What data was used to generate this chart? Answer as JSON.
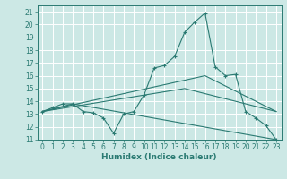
{
  "xlabel": "Humidex (Indice chaleur)",
  "xlim": [
    -0.5,
    23.5
  ],
  "ylim": [
    11,
    21.5
  ],
  "yticks": [
    11,
    12,
    13,
    14,
    15,
    16,
    17,
    18,
    19,
    20,
    21
  ],
  "xticks": [
    0,
    1,
    2,
    3,
    4,
    5,
    6,
    7,
    8,
    9,
    10,
    11,
    12,
    13,
    14,
    15,
    16,
    17,
    18,
    19,
    20,
    21,
    22,
    23
  ],
  "bg_color": "#cce8e5",
  "line_color": "#2a7a72",
  "grid_color": "#ffffff",
  "main_line": {
    "x": [
      0,
      1,
      2,
      3,
      4,
      5,
      6,
      7,
      8,
      9,
      10,
      11,
      12,
      13,
      14,
      15,
      16,
      17,
      18,
      19,
      20,
      21,
      22,
      23
    ],
    "y": [
      13.2,
      13.5,
      13.8,
      13.8,
      13.2,
      13.1,
      12.7,
      11.5,
      13.0,
      13.2,
      14.5,
      16.6,
      16.8,
      17.5,
      19.4,
      20.2,
      20.9,
      16.7,
      16.0,
      16.1,
      13.2,
      12.7,
      12.1,
      11.0
    ]
  },
  "extra_lines": [
    {
      "x": [
        0,
        3,
        23
      ],
      "y": [
        13.2,
        13.8,
        11.0
      ]
    },
    {
      "x": [
        0,
        16,
        23
      ],
      "y": [
        13.2,
        16.0,
        13.2
      ]
    },
    {
      "x": [
        0,
        14,
        23
      ],
      "y": [
        13.2,
        15.0,
        13.2
      ]
    }
  ]
}
